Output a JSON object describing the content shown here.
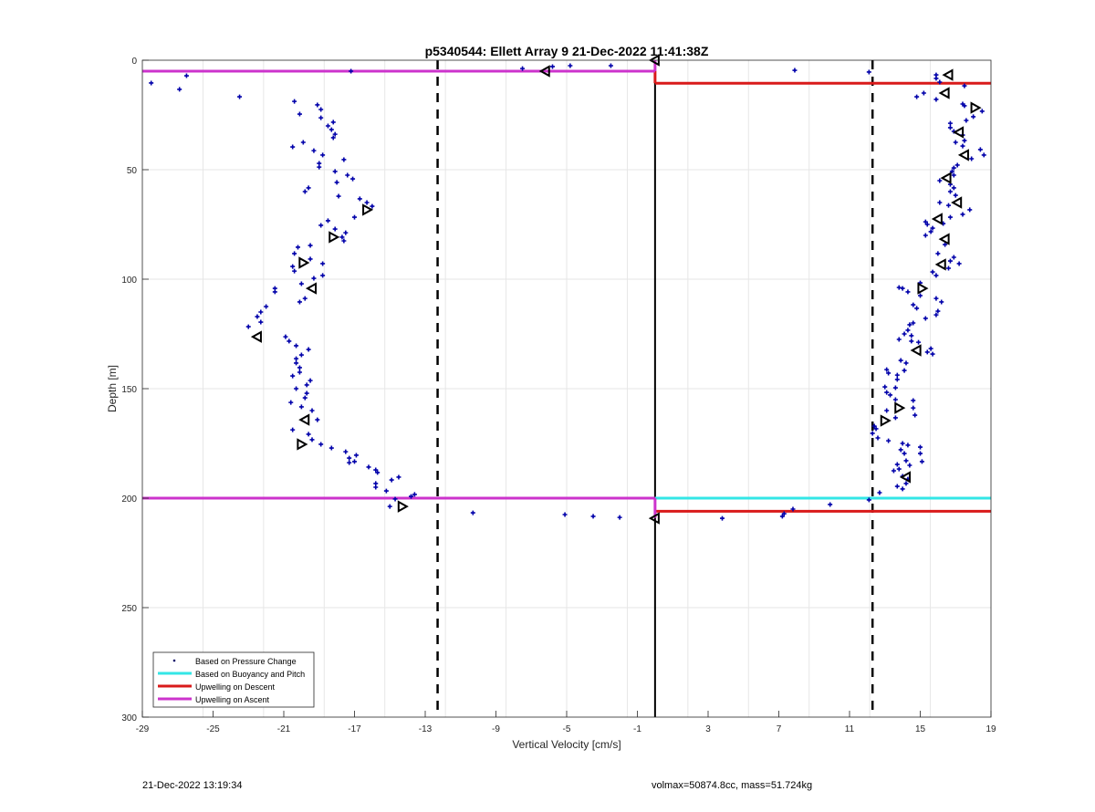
{
  "chart_data": {
    "type": "scatter",
    "title": "p5340544: Ellett Array 9 21-Dec-2022 11:41:38Z",
    "xlabel": "Vertical Velocity [cm/s]",
    "ylabel": "Depth [m]",
    "xlim": [
      -29,
      19
    ],
    "ylim": [
      0,
      300
    ],
    "y_reversed": true,
    "grid": true,
    "xticks": [
      -29,
      -25,
      -21,
      -17,
      -13,
      -9,
      -5,
      -1,
      3,
      7,
      11,
      15,
      19
    ],
    "yticks": [
      0,
      50,
      100,
      150,
      200,
      250,
      300
    ],
    "legend_position": "bottom-left",
    "legend": [
      "Based on Pressure Change",
      "Based on Buoyancy and Pitch",
      "Upwelling on Descent",
      "Upwelling on Ascent"
    ],
    "colors": {
      "points": "#0000aa",
      "buoyancy": "#33e6e6",
      "descent": "#d91a1a",
      "ascent": "#cc33cc",
      "markers": "#000000"
    },
    "pressure_change_points": [
      [
        -23.5,
        16.7
      ],
      [
        -20.4,
        18.8
      ],
      [
        -19.1,
        20.4
      ],
      [
        -18.9,
        22.5
      ],
      [
        -20.1,
        24.6
      ],
      [
        -18.9,
        26.3
      ],
      [
        -18.2,
        28.3
      ],
      [
        -18.5,
        30
      ],
      [
        -18.3,
        31.7
      ],
      [
        -18.1,
        33.8
      ],
      [
        -18.2,
        35.4
      ],
      [
        -20.5,
        39.6
      ],
      [
        -19.9,
        37.5
      ],
      [
        -19.3,
        41.3
      ],
      [
        -18.8,
        43.3
      ],
      [
        -19.0,
        47.1
      ],
      [
        -17.6,
        45.4
      ],
      [
        -19.0,
        48.8
      ],
      [
        -18.1,
        50.8
      ],
      [
        -17.4,
        52.5
      ],
      [
        -17.1,
        54.2
      ],
      [
        -18.0,
        55.8
      ],
      [
        -17.9,
        62.1
      ],
      [
        -19.6,
        58.3
      ],
      [
        -19.8,
        60
      ],
      [
        -16.7,
        63.3
      ],
      [
        -16.3,
        65
      ],
      [
        -16.0,
        66.7
      ],
      [
        -17.0,
        71.7
      ],
      [
        -18.9,
        75.4
      ],
      [
        -18.5,
        73.3
      ],
      [
        -18.1,
        77.1
      ],
      [
        -17.5,
        78.8
      ],
      [
        -17.7,
        80.8
      ],
      [
        -17.6,
        82.5
      ],
      [
        -19.5,
        84.6
      ],
      [
        -20.2,
        85.4
      ],
      [
        -20.4,
        88.3
      ],
      [
        -19.5,
        90.8
      ],
      [
        -20.5,
        94.2
      ],
      [
        -20.4,
        96.3
      ],
      [
        -18.8,
        92.9
      ],
      [
        -18.8,
        98.3
      ],
      [
        -19.3,
        99.6
      ],
      [
        -20.0,
        102.1
      ],
      [
        -21.5,
        104.2
      ],
      [
        -21.5,
        105.8
      ],
      [
        -20.1,
        110.4
      ],
      [
        -19.8,
        108.8
      ],
      [
        -22.0,
        112.5
      ],
      [
        -22.3,
        115
      ],
      [
        -22.5,
        117.1
      ],
      [
        -22.3,
        119.6
      ],
      [
        -23.0,
        121.7
      ],
      [
        -20.9,
        126.3
      ],
      [
        -20.7,
        128.3
      ],
      [
        -20.3,
        130.4
      ],
      [
        -19.6,
        132.1
      ],
      [
        -20.0,
        134.6
      ],
      [
        -20.3,
        136.3
      ],
      [
        -20.3,
        138.3
      ],
      [
        -20.1,
        140.4
      ],
      [
        -20.1,
        142.5
      ],
      [
        -20.5,
        144.2
      ],
      [
        -19.5,
        146.3
      ],
      [
        -19.7,
        148.3
      ],
      [
        -20.3,
        150
      ],
      [
        -19.7,
        152.1
      ],
      [
        -19.8,
        154.2
      ],
      [
        -20.6,
        156.3
      ],
      [
        -20.0,
        158.3
      ],
      [
        -19.4,
        160
      ],
      [
        -19.1,
        164.2
      ],
      [
        -20.5,
        168.8
      ],
      [
        -19.6,
        170.8
      ],
      [
        -19.4,
        173.3
      ],
      [
        -18.9,
        175.4
      ],
      [
        -18.3,
        177.1
      ],
      [
        -17.5,
        178.8
      ],
      [
        -16.9,
        180.4
      ],
      [
        -17.3,
        181.7
      ],
      [
        -17.3,
        183.8
      ],
      [
        -17.0,
        183.3
      ],
      [
        -16.2,
        185.8
      ],
      [
        -15.8,
        187.1
      ],
      [
        -15.7,
        188.3
      ],
      [
        -15.8,
        193.3
      ],
      [
        -15.8,
        195
      ],
      [
        -15.2,
        196.7
      ],
      [
        -14.9,
        191.7
      ],
      [
        -14.5,
        190.4
      ],
      [
        -14.7,
        200.4
      ],
      [
        -15.0,
        203.8
      ],
      [
        -13.8,
        199.2
      ],
      [
        -13.6,
        198.3
      ],
      [
        -28.5,
        10.4
      ],
      [
        -26.9,
        13.3
      ],
      [
        -26.5,
        7.1
      ],
      [
        -17.2,
        5
      ],
      [
        -7.5,
        3.8
      ],
      [
        -5.8,
        2.9
      ],
      [
        -4.8,
        2.5
      ],
      [
        -2.5,
        2.5
      ],
      [
        7.9,
        4.6
      ],
      [
        12.1,
        5.4
      ],
      [
        -10.3,
        206.7
      ],
      [
        -5.1,
        207.5
      ],
      [
        -3.5,
        208.3
      ],
      [
        -2.0,
        208.8
      ],
      [
        3.8,
        209.2
      ],
      [
        7.2,
        208.3
      ],
      [
        7.3,
        207.1
      ],
      [
        7.8,
        205
      ],
      [
        9.9,
        202.9
      ],
      [
        12.1,
        200.8
      ],
      [
        15.9,
        6.7
      ],
      [
        15.9,
        8.3
      ],
      [
        16.1,
        10
      ],
      [
        17.5,
        11.7
      ],
      [
        14.8,
        16.7
      ],
      [
        15.2,
        15
      ],
      [
        15.9,
        17.9
      ],
      [
        17.4,
        20
      ],
      [
        17.5,
        20.8
      ],
      [
        18.5,
        23.3
      ],
      [
        18.0,
        25.8
      ],
      [
        17.6,
        27.5
      ],
      [
        16.7,
        28.8
      ],
      [
        16.7,
        30.8
      ],
      [
        16.9,
        32.5
      ],
      [
        17.4,
        34.2
      ],
      [
        17.5,
        36.7
      ],
      [
        17.0,
        37.5
      ],
      [
        17.4,
        39.2
      ],
      [
        18.4,
        40.8
      ],
      [
        18.6,
        43.3
      ],
      [
        17.9,
        45
      ],
      [
        17.1,
        47.9
      ],
      [
        16.9,
        49.2
      ],
      [
        16.8,
        50.8
      ],
      [
        16.9,
        52.5
      ],
      [
        16.1,
        55
      ],
      [
        16.7,
        56.7
      ],
      [
        16.9,
        58.3
      ],
      [
        16.7,
        60
      ],
      [
        17.0,
        61.7
      ],
      [
        16.1,
        65
      ],
      [
        16.6,
        66.3
      ],
      [
        17.8,
        68.3
      ],
      [
        17.4,
        70.4
      ],
      [
        16.7,
        71.7
      ],
      [
        15.3,
        73.8
      ],
      [
        16.3,
        74.6
      ],
      [
        15.4,
        75
      ],
      [
        15.7,
        76.7
      ],
      [
        15.6,
        78.3
      ],
      [
        15.3,
        80
      ],
      [
        16.4,
        84.2
      ],
      [
        16.0,
        88.3
      ],
      [
        16.9,
        90
      ],
      [
        16.7,
        91.7
      ],
      [
        17.2,
        92.9
      ],
      [
        16.6,
        95
      ],
      [
        15.7,
        96.7
      ],
      [
        15.9,
        98.3
      ],
      [
        15.0,
        101.7
      ],
      [
        13.8,
        103.8
      ],
      [
        14.0,
        104.2
      ],
      [
        14.3,
        105.8
      ],
      [
        15.0,
        107.5
      ],
      [
        15.9,
        108.8
      ],
      [
        16.2,
        110.4
      ],
      [
        14.6,
        111.7
      ],
      [
        14.8,
        113.3
      ],
      [
        15.3,
        117.9
      ],
      [
        16.0,
        114.6
      ],
      [
        15.9,
        116.3
      ],
      [
        14.4,
        120.8
      ],
      [
        14.6,
        120
      ],
      [
        14.3,
        123.3
      ],
      [
        14.1,
        125
      ],
      [
        13.8,
        127.5
      ],
      [
        14.5,
        125.8
      ],
      [
        14.5,
        128.3
      ],
      [
        14.9,
        128.8
      ],
      [
        15.6,
        131.7
      ],
      [
        15.4,
        133.3
      ],
      [
        15.7,
        134.2
      ],
      [
        13.9,
        137.1
      ],
      [
        14.2,
        138.3
      ],
      [
        13.1,
        141.3
      ],
      [
        13.2,
        142.9
      ],
      [
        14.1,
        141.7
      ],
      [
        13.7,
        143.8
      ],
      [
        13.7,
        145.8
      ],
      [
        13.0,
        149.2
      ],
      [
        13.1,
        151.7
      ],
      [
        13.6,
        149.6
      ],
      [
        13.3,
        152.9
      ],
      [
        13.6,
        155
      ],
      [
        14.6,
        155.4
      ],
      [
        13.1,
        160
      ],
      [
        14.6,
        158.8
      ],
      [
        14.7,
        162.1
      ],
      [
        13.6,
        163.3
      ],
      [
        12.4,
        167.1
      ],
      [
        12.5,
        168.3
      ],
      [
        12.3,
        170.4
      ],
      [
        12.6,
        172.5
      ],
      [
        13.2,
        173.8
      ],
      [
        14.0,
        175
      ],
      [
        13.9,
        177.9
      ],
      [
        14.3,
        175.8
      ],
      [
        14.1,
        179.6
      ],
      [
        15.0,
        176.7
      ],
      [
        15.1,
        183.3
      ],
      [
        15.0,
        179.6
      ],
      [
        14.2,
        182.9
      ],
      [
        14.4,
        185
      ],
      [
        13.7,
        184.6
      ],
      [
        13.5,
        187.5
      ],
      [
        13.8,
        186.7
      ],
      [
        14.0,
        190
      ],
      [
        14.3,
        191.3
      ],
      [
        14.2,
        193.3
      ],
      [
        13.7,
        194.6
      ],
      [
        14.0,
        195.8
      ],
      [
        12.7,
        197.5
      ]
    ],
    "triangle_markers": [
      {
        "v": -16.3,
        "d": 68.3,
        "dir": "right"
      },
      {
        "v": -18.2,
        "d": 80.8,
        "dir": "right"
      },
      {
        "v": -19.9,
        "d": 92.5,
        "dir": "right"
      },
      {
        "v": -19.4,
        "d": 104.2,
        "dir": "left"
      },
      {
        "v": -22.5,
        "d": 126.3,
        "dir": "left"
      },
      {
        "v": -19.8,
        "d": 164.2,
        "dir": "left"
      },
      {
        "v": -20.0,
        "d": 175.4,
        "dir": "right"
      },
      {
        "v": -6.2,
        "d": 5,
        "dir": "left"
      },
      {
        "v": 0,
        "d": 0,
        "dir": "left"
      },
      {
        "v": -14.3,
        "d": 203.8,
        "dir": "right"
      },
      {
        "v": 0,
        "d": 209.2,
        "dir": "left"
      },
      {
        "v": 16.6,
        "d": 6.7,
        "dir": "left"
      },
      {
        "v": 16.4,
        "d": 15,
        "dir": "left"
      },
      {
        "v": 18.1,
        "d": 21.7,
        "dir": "right"
      },
      {
        "v": 17.2,
        "d": 32.9,
        "dir": "left"
      },
      {
        "v": 17.5,
        "d": 43.3,
        "dir": "left"
      },
      {
        "v": 16.5,
        "d": 53.8,
        "dir": "left"
      },
      {
        "v": 17.1,
        "d": 65,
        "dir": "left"
      },
      {
        "v": 16.0,
        "d": 72.5,
        "dir": "left"
      },
      {
        "v": 16.4,
        "d": 81.7,
        "dir": "left"
      },
      {
        "v": 16.2,
        "d": 93.3,
        "dir": "left"
      },
      {
        "v": 15.1,
        "d": 104.2,
        "dir": "right"
      },
      {
        "v": 14.8,
        "d": 132.5,
        "dir": "left"
      },
      {
        "v": 13.8,
        "d": 158.8,
        "dir": "right"
      },
      {
        "v": 13.0,
        "d": 164.6,
        "dir": "right"
      },
      {
        "v": 14.2,
        "d": 190.4,
        "dir": "left"
      }
    ],
    "lines": [
      {
        "name": "ascent-upper",
        "series": "ascent",
        "v": [
          -29,
          0
        ],
        "d": [
          5,
          5
        ]
      },
      {
        "name": "ascent-lower",
        "series": "ascent",
        "v": [
          -29,
          0
        ],
        "d": [
          200,
          200
        ]
      },
      {
        "name": "ascent-upper-link",
        "series": "ascent",
        "v": [
          0,
          0
        ],
        "d": [
          0,
          5
        ]
      },
      {
        "name": "ascent-lower-link",
        "series": "ascent",
        "v": [
          0,
          0
        ],
        "d": [
          200,
          209
        ]
      },
      {
        "name": "descent-upper",
        "series": "descent",
        "v": [
          0,
          19
        ],
        "d": [
          10.5,
          10.5
        ]
      },
      {
        "name": "descent-lower",
        "series": "descent",
        "v": [
          0,
          19
        ],
        "d": [
          206,
          206
        ]
      },
      {
        "name": "descent-upper-link",
        "series": "descent",
        "v": [
          0,
          0
        ],
        "d": [
          5,
          10.5
        ]
      },
      {
        "name": "buoyancy-lower",
        "series": "buoyancy",
        "v": [
          0,
          19
        ],
        "d": [
          200,
          200
        ]
      }
    ],
    "reference_lines": [
      {
        "name": "zero-line",
        "v": 0,
        "style": "solid"
      },
      {
        "name": "neg-threshold",
        "v": -12.3,
        "style": "dashed"
      },
      {
        "name": "pos-threshold",
        "v": 12.3,
        "style": "dashed"
      }
    ]
  },
  "footer": {
    "timestamp": "21-Dec-2022 13:19:34",
    "info": "volmax=50874.8cc, mass=51.724kg"
  }
}
